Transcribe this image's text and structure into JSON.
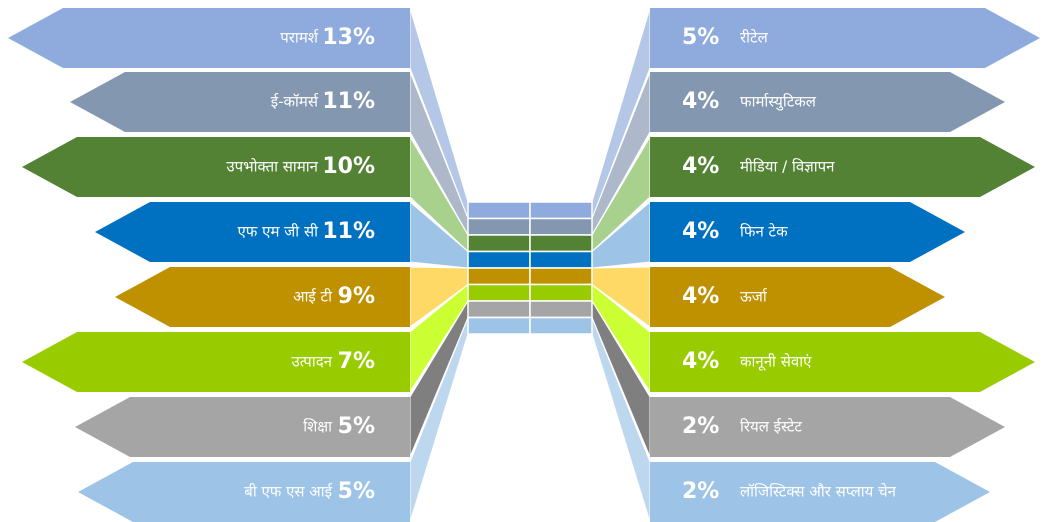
{
  "left": [
    {
      "label": "परामर्श",
      "value": "13%"
    },
    {
      "label": "ई-कॉमर्स",
      "value": "11%"
    },
    {
      "label": "उपभोक्ता सामान",
      "value": "10%"
    },
    {
      "label": "एफ एम जी सी",
      "value": "11%"
    },
    {
      "label": "आई टी",
      "value": "9%"
    },
    {
      "label": "उत्पादन",
      "value": "7%"
    },
    {
      "label": "शिक्षा",
      "value": "5%"
    },
    {
      "label": "बी एफ एस आई",
      "value": "5%"
    }
  ],
  "right": [
    {
      "label": "रीटेल",
      "value": "5%"
    },
    {
      "label": "फार्मास्युटिकल",
      "value": "4%"
    },
    {
      "label": "मीडिया / विज्ञापन",
      "value": "4%"
    },
    {
      "label": "फिन टेक",
      "value": "4%"
    },
    {
      "label": "ऊर्जा",
      "value": "4%"
    },
    {
      "label": "कानूनी सेवाएं",
      "value": "4%"
    },
    {
      "label": "रियल ईस्टेट",
      "value": "2%"
    },
    {
      "label": "लॉजिस्टिक्स और सप्लाय चेन",
      "value": "2%"
    }
  ]
}
